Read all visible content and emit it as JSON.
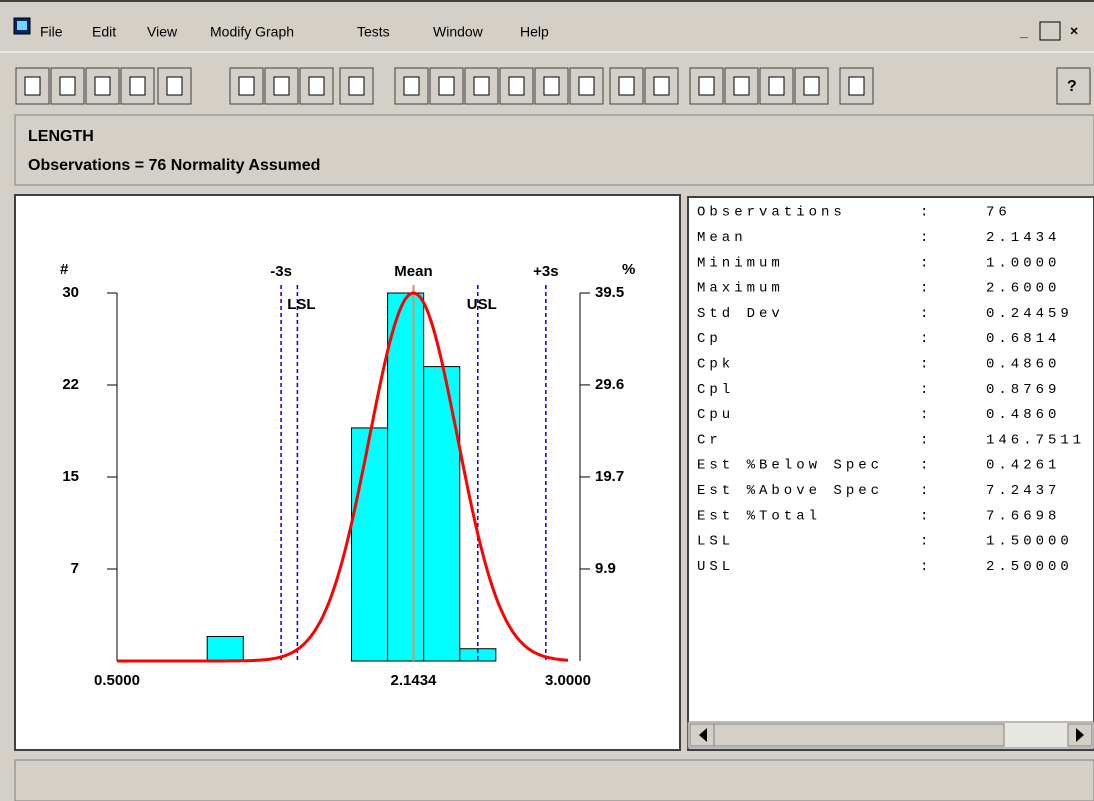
{
  "menu": {
    "items": [
      "File",
      "Edit",
      "View",
      "Modify Graph",
      "Tests",
      "Window",
      "Help"
    ]
  },
  "header": {
    "title": "LENGTH",
    "subtitle": "Observations = 76  Normality Assumed"
  },
  "chart_data": {
    "type": "histogram",
    "bins": [
      1.0,
      1.2,
      1.4,
      1.6,
      1.8,
      2.0,
      2.2,
      2.4,
      2.6
    ],
    "counts": [
      2,
      0,
      0,
      0,
      19,
      30,
      24,
      1
    ],
    "color": "#00ffff",
    "xlim": [
      0.5,
      3.0
    ],
    "xticks": [
      {
        "value": 0.5,
        "label": "0.5000"
      },
      {
        "value": 2.1434,
        "label": "2.1434"
      },
      {
        "value": 3.0,
        "label": "3.0000"
      }
    ],
    "ylim": [
      0,
      30
    ],
    "yticks": [
      {
        "value": 7.5,
        "label": "7"
      },
      15,
      {
        "value": 22.5,
        "label": "22"
      },
      30
    ],
    "y2lim": [
      0,
      39.47
    ],
    "y2ticks": [
      {
        "value": 9.87,
        "label": "9.9"
      },
      {
        "value": 19.74,
        "label": "19.7"
      },
      {
        "value": 29.61,
        "label": "29.6"
      },
      {
        "value": 39.47,
        "label": "39.5"
      }
    ],
    "ylabel": "#",
    "y2label": "%",
    "curve": {
      "mean": 2.1434,
      "sd": 0.24459,
      "color": "#ff0000"
    },
    "markers": [
      {
        "label": "-3s",
        "value": 1.40963,
        "color": "#0000cc",
        "dashed": true
      },
      {
        "label": "Mean",
        "value": 2.1434,
        "color": "#e0905a",
        "dashed": false
      },
      {
        "label": "+3s",
        "value": 2.87717,
        "color": "#0000cc",
        "dashed": true
      }
    ],
    "limits": [
      {
        "label": "LSL",
        "value": 1.5,
        "color": "#0000cc",
        "dashed": true
      },
      {
        "label": "USL",
        "value": 2.5,
        "color": "#0000cc",
        "dashed": true
      }
    ]
  },
  "stats": {
    "separator": ":",
    "rows": [
      [
        "Observations",
        "76"
      ],
      [
        "Mean",
        "2.1434"
      ],
      [
        "Minimum",
        "1.0000"
      ],
      [
        "Maximum",
        "2.6000"
      ],
      [
        "Std Dev",
        "0.24459"
      ],
      [
        "Cp",
        "0.6814"
      ],
      [
        "Cpk",
        "0.4860"
      ],
      [
        "Cpl",
        "0.8769"
      ],
      [
        "Cpu",
        "0.4860"
      ],
      [
        "Cr",
        "146.7511"
      ],
      [
        "Est %Below Spec",
        "0.4261"
      ],
      [
        "Est %Above Spec",
        "7.2437"
      ],
      [
        "Est %Total",
        "7.6698"
      ],
      [
        "LSL",
        "1.50000"
      ],
      [
        "USL",
        "2.50000"
      ]
    ]
  }
}
